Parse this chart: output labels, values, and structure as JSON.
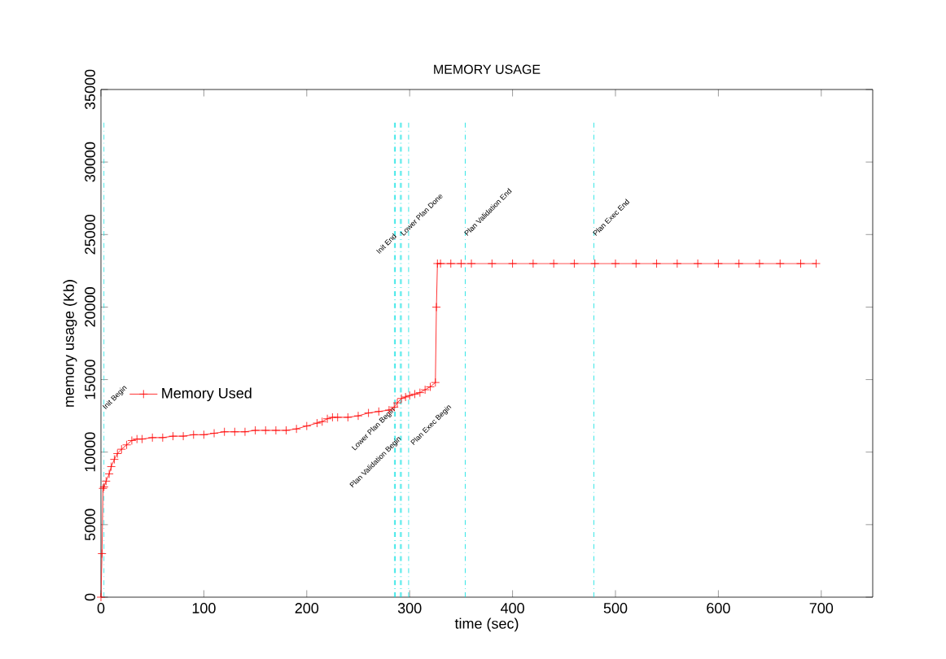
{
  "chart_data": {
    "type": "line",
    "title": "MEMORY USAGE",
    "xlabel": "time (sec)",
    "ylabel": "memory usage (Kb)",
    "xlim": [
      0,
      750
    ],
    "ylim": [
      0,
      35000
    ],
    "xticks": [
      0,
      100,
      200,
      300,
      400,
      500,
      600,
      700
    ],
    "yticks": [
      0,
      5000,
      10000,
      15000,
      20000,
      25000,
      30000,
      35000
    ],
    "series": [
      {
        "name": "Memory Used",
        "color": "#ff0000",
        "x": [
          0,
          1,
          2,
          3,
          5,
          8,
          10,
          13,
          16,
          20,
          25,
          30,
          35,
          40,
          50,
          60,
          70,
          80,
          90,
          100,
          110,
          120,
          130,
          140,
          150,
          160,
          170,
          180,
          190,
          200,
          210,
          215,
          220,
          225,
          230,
          240,
          250,
          260,
          270,
          280,
          285,
          288,
          292,
          296,
          300,
          305,
          310,
          315,
          320,
          325,
          326,
          327,
          330,
          340,
          350,
          360,
          380,
          400,
          420,
          440,
          460,
          480,
          500,
          520,
          540,
          560,
          580,
          600,
          620,
          640,
          660,
          680,
          695
        ],
        "values": [
          0,
          3000,
          7500,
          7600,
          8000,
          8500,
          9000,
          9500,
          9900,
          10200,
          10500,
          10800,
          10900,
          10900,
          11000,
          11000,
          11100,
          11100,
          11200,
          11200,
          11300,
          11400,
          11400,
          11400,
          11500,
          11500,
          11500,
          11500,
          11600,
          11800,
          12000,
          12100,
          12300,
          12400,
          12400,
          12400,
          12500,
          12700,
          12800,
          12900,
          13100,
          13400,
          13700,
          13800,
          13900,
          14000,
          14100,
          14300,
          14500,
          14800,
          20000,
          23000,
          23000,
          23000,
          23000,
          23000,
          23000,
          23000,
          23000,
          23000,
          23000,
          23000,
          23000,
          23000,
          23000,
          23000,
          23000,
          23000,
          23000,
          23000,
          23000,
          23000,
          23000
        ]
      }
    ],
    "ref_lines": [
      {
        "axis": "x",
        "value": 3,
        "label": "Init Begin",
        "color": "#00e0e0",
        "line_style": "dashed"
      },
      {
        "axis": "x",
        "value": 285,
        "label": "Lower Plan Begin",
        "color": "#00e0e0",
        "line_style": "dashed"
      },
      {
        "axis": "x",
        "value": 286,
        "label": "Init End",
        "color": "#00e0e0",
        "line_style": "dashed"
      },
      {
        "axis": "x",
        "value": 291,
        "label": "Plan Validation Begin",
        "color": "#00e0e0",
        "line_style": "dashed"
      },
      {
        "axis": "x",
        "value": 292,
        "label": "Lower Plan Done",
        "color": "#00e0e0",
        "line_style": "dashed"
      },
      {
        "axis": "x",
        "value": 299,
        "label": "Plan Exec Begin",
        "color": "#00e0e0",
        "line_style": "dashed"
      },
      {
        "axis": "x",
        "value": 354,
        "label": "Plan Validation End",
        "color": "#00e0e0",
        "line_style": "dashed"
      },
      {
        "axis": "x",
        "value": 479,
        "label": "Plan Exec End",
        "color": "#00e0e0",
        "line_style": "dashed"
      }
    ],
    "legend": "left",
    "marker": "cross",
    "line_style": "solid",
    "grid": false
  }
}
